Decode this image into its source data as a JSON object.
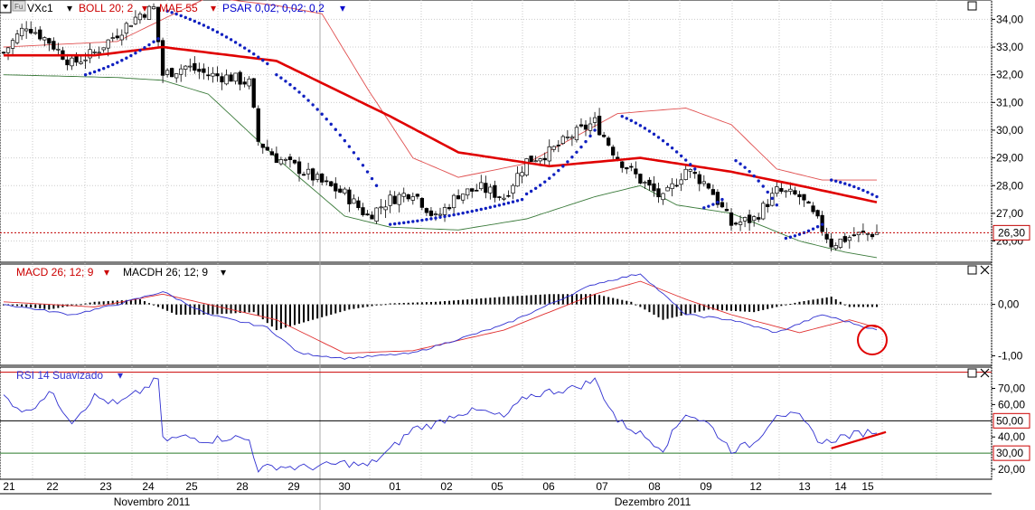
{
  "chart_data": [
    {
      "type": "candlestick",
      "panel": "price",
      "symbol": "VXc1",
      "indicators": [
        {
          "label": "BOLL 20; 2",
          "color": "#cc0000"
        },
        {
          "label": "MAE 55",
          "color": "#cc0000"
        },
        {
          "label": "PSAR 0,02; 0,02; 0,2",
          "color": "#0000cc"
        }
      ],
      "ylim": [
        25.3,
        34.6
      ],
      "yticks": [
        "34,00",
        "33,00",
        "32,00",
        "31,00",
        "30,00",
        "29,00",
        "28,00",
        "27,00",
        "26,00"
      ],
      "last_price_label": "26,30",
      "last_price": 26.3,
      "keypoints": [
        {
          "x": 0,
          "close": 32.8
        },
        {
          "x": 5,
          "close": 33.8
        },
        {
          "x": 10,
          "close": 33.2
        },
        {
          "x": 15,
          "close": 32.4
        },
        {
          "x": 20,
          "close": 32.8
        },
        {
          "x": 25,
          "close": 33.5
        },
        {
          "x": 30,
          "close": 34.2
        },
        {
          "x": 33,
          "close": 34.4
        },
        {
          "x": 35,
          "close": 32.0
        },
        {
          "x": 40,
          "close": 32.3
        },
        {
          "x": 45,
          "close": 32.0
        },
        {
          "x": 50,
          "close": 31.9
        },
        {
          "x": 54,
          "close": 31.7
        },
        {
          "x": 56,
          "close": 29.6
        },
        {
          "x": 60,
          "close": 29.0
        },
        {
          "x": 65,
          "close": 28.6
        },
        {
          "x": 70,
          "close": 28.1
        },
        {
          "x": 75,
          "close": 27.7
        },
        {
          "x": 80,
          "close": 26.9
        },
        {
          "x": 85,
          "close": 27.5
        },
        {
          "x": 90,
          "close": 27.8
        },
        {
          "x": 95,
          "close": 26.8
        },
        {
          "x": 100,
          "close": 27.7
        },
        {
          "x": 105,
          "close": 27.9
        },
        {
          "x": 110,
          "close": 27.6
        },
        {
          "x": 115,
          "close": 28.9
        },
        {
          "x": 120,
          "close": 29.2
        },
        {
          "x": 125,
          "close": 29.8
        },
        {
          "x": 130,
          "close": 30.3
        },
        {
          "x": 135,
          "close": 29.0
        },
        {
          "x": 140,
          "close": 28.2
        },
        {
          "x": 145,
          "close": 27.5
        },
        {
          "x": 150,
          "close": 28.6
        },
        {
          "x": 155,
          "close": 28.0
        },
        {
          "x": 160,
          "close": 26.6
        },
        {
          "x": 165,
          "close": 26.8
        },
        {
          "x": 170,
          "close": 27.8
        },
        {
          "x": 175,
          "close": 27.6
        },
        {
          "x": 179,
          "close": 26.7
        },
        {
          "x": 182,
          "close": 25.9
        },
        {
          "x": 187,
          "close": 26.2
        },
        {
          "x": 192,
          "close": 26.3
        }
      ],
      "mae_55": [
        {
          "x": 0,
          "y": 32.7
        },
        {
          "x": 20,
          "y": 32.7
        },
        {
          "x": 35,
          "y": 33.0
        },
        {
          "x": 60,
          "y": 32.5
        },
        {
          "x": 85,
          "y": 30.5
        },
        {
          "x": 100,
          "y": 29.2
        },
        {
          "x": 120,
          "y": 28.7
        },
        {
          "x": 140,
          "y": 29.0
        },
        {
          "x": 160,
          "y": 28.5
        },
        {
          "x": 175,
          "y": 28.0
        },
        {
          "x": 192,
          "y": 27.4
        }
      ],
      "boll_upper": [
        {
          "x": 0,
          "y": 33.0
        },
        {
          "x": 25,
          "y": 33.2
        },
        {
          "x": 45,
          "y": 34.8
        },
        {
          "x": 60,
          "y": 34.5
        },
        {
          "x": 70,
          "y": 34.2
        },
        {
          "x": 80,
          "y": 31.5
        },
        {
          "x": 90,
          "y": 29.0
        },
        {
          "x": 100,
          "y": 28.3
        },
        {
          "x": 115,
          "y": 28.8
        },
        {
          "x": 135,
          "y": 30.6
        },
        {
          "x": 150,
          "y": 30.8
        },
        {
          "x": 160,
          "y": 30.2
        },
        {
          "x": 170,
          "y": 28.6
        },
        {
          "x": 180,
          "y": 28.2
        },
        {
          "x": 192,
          "y": 28.2
        }
      ],
      "boll_lower": [
        {
          "x": 0,
          "y": 32.0
        },
        {
          "x": 25,
          "y": 31.9
        },
        {
          "x": 35,
          "y": 31.8
        },
        {
          "x": 45,
          "y": 31.3
        },
        {
          "x": 60,
          "y": 29.0
        },
        {
          "x": 75,
          "y": 26.9
        },
        {
          "x": 85,
          "y": 26.5
        },
        {
          "x": 100,
          "y": 26.4
        },
        {
          "x": 115,
          "y": 26.8
        },
        {
          "x": 130,
          "y": 27.6
        },
        {
          "x": 140,
          "y": 28.0
        },
        {
          "x": 148,
          "y": 27.3
        },
        {
          "x": 160,
          "y": 27.0
        },
        {
          "x": 175,
          "y": 26.0
        },
        {
          "x": 185,
          "y": 25.6
        },
        {
          "x": 192,
          "y": 25.4
        }
      ],
      "psar_segments": [
        [
          {
            "x": 18,
            "y": 32.0
          },
          {
            "x": 34,
            "y": 33.3
          }
        ],
        [
          {
            "x": 36,
            "y": 34.3
          },
          {
            "x": 58,
            "y": 32.4
          }
        ],
        [
          {
            "x": 60,
            "y": 32.0
          },
          {
            "x": 82,
            "y": 28.0
          }
        ],
        [
          {
            "x": 85,
            "y": 26.6
          },
          {
            "x": 114,
            "y": 27.5
          }
        ],
        [
          {
            "x": 115,
            "y": 27.7
          },
          {
            "x": 130,
            "y": 30.0
          }
        ],
        [
          {
            "x": 136,
            "y": 30.5
          },
          {
            "x": 152,
            "y": 28.6
          }
        ],
        [
          {
            "x": 154,
            "y": 27.2
          },
          {
            "x": 158,
            "y": 27.5
          }
        ],
        [
          {
            "x": 161,
            "y": 28.9
          },
          {
            "x": 170,
            "y": 27.3
          }
        ],
        [
          {
            "x": 172,
            "y": 26.1
          },
          {
            "x": 180,
            "y": 26.6
          }
        ],
        [
          {
            "x": 182,
            "y": 28.2
          },
          {
            "x": 192,
            "y": 27.6
          }
        ]
      ]
    },
    {
      "type": "line",
      "panel": "macd",
      "labels": [
        "MACD 26; 12; 9",
        "MACDH 26; 12; 9"
      ],
      "ylim": [
        -1.15,
        0.75
      ],
      "yticks": [
        "0,00",
        "-1,00"
      ],
      "macd": [
        {
          "x": 0,
          "y": 0.0
        },
        {
          "x": 15,
          "y": -0.2
        },
        {
          "x": 25,
          "y": 0.0
        },
        {
          "x": 35,
          "y": 0.25
        },
        {
          "x": 45,
          "y": -0.2
        },
        {
          "x": 58,
          "y": -0.45
        },
        {
          "x": 65,
          "y": -0.95
        },
        {
          "x": 75,
          "y": -1.05
        },
        {
          "x": 90,
          "y": -0.95
        },
        {
          "x": 110,
          "y": -0.4
        },
        {
          "x": 130,
          "y": 0.4
        },
        {
          "x": 140,
          "y": 0.6
        },
        {
          "x": 150,
          "y": -0.2
        },
        {
          "x": 160,
          "y": -0.3
        },
        {
          "x": 170,
          "y": -0.55
        },
        {
          "x": 180,
          "y": -0.2
        },
        {
          "x": 186,
          "y": -0.35
        },
        {
          "x": 192,
          "y": -0.5
        }
      ],
      "signal": [
        {
          "x": 0,
          "y": 0.05
        },
        {
          "x": 20,
          "y": -0.05
        },
        {
          "x": 35,
          "y": 0.2
        },
        {
          "x": 45,
          "y": 0.0
        },
        {
          "x": 60,
          "y": -0.3
        },
        {
          "x": 75,
          "y": -0.95
        },
        {
          "x": 90,
          "y": -0.9
        },
        {
          "x": 110,
          "y": -0.5
        },
        {
          "x": 130,
          "y": 0.2
        },
        {
          "x": 140,
          "y": 0.45
        },
        {
          "x": 150,
          "y": 0.1
        },
        {
          "x": 160,
          "y": -0.2
        },
        {
          "x": 175,
          "y": -0.55
        },
        {
          "x": 186,
          "y": -0.3
        },
        {
          "x": 192,
          "y": -0.45
        }
      ],
      "histogram": [
        {
          "x": 0,
          "y": 0.0
        },
        {
          "x": 10,
          "y": -0.1
        },
        {
          "x": 20,
          "y": 0.05
        },
        {
          "x": 30,
          "y": 0.1
        },
        {
          "x": 38,
          "y": -0.2
        },
        {
          "x": 45,
          "y": -0.2
        },
        {
          "x": 55,
          "y": -0.15
        },
        {
          "x": 60,
          "y": -0.5
        },
        {
          "x": 68,
          "y": -0.3
        },
        {
          "x": 76,
          "y": -0.1
        },
        {
          "x": 85,
          "y": 0.02
        },
        {
          "x": 95,
          "y": 0.05
        },
        {
          "x": 110,
          "y": 0.15
        },
        {
          "x": 120,
          "y": 0.2
        },
        {
          "x": 130,
          "y": 0.2
        },
        {
          "x": 138,
          "y": 0.05
        },
        {
          "x": 145,
          "y": -0.3
        },
        {
          "x": 155,
          "y": -0.1
        },
        {
          "x": 165,
          "y": -0.15
        },
        {
          "x": 175,
          "y": 0.05
        },
        {
          "x": 182,
          "y": 0.15
        },
        {
          "x": 186,
          "y": -0.05
        },
        {
          "x": 192,
          "y": -0.05
        }
      ],
      "annotation": "red-circle"
    },
    {
      "type": "line",
      "panel": "rsi",
      "label": "RSI 14 Suavizado",
      "ylim": [
        15,
        82
      ],
      "yticks": [
        "70,00",
        "60,00",
        "40,00",
        "20,00"
      ],
      "level_labels": [
        "50,00",
        "30,00"
      ],
      "levels": [
        80,
        50,
        30
      ],
      "rsi": [
        {
          "x": 0,
          "y": 65
        },
        {
          "x": 5,
          "y": 55
        },
        {
          "x": 10,
          "y": 68
        },
        {
          "x": 15,
          "y": 50
        },
        {
          "x": 20,
          "y": 65
        },
        {
          "x": 25,
          "y": 60
        },
        {
          "x": 30,
          "y": 68
        },
        {
          "x": 34,
          "y": 76
        },
        {
          "x": 35,
          "y": 38
        },
        {
          "x": 40,
          "y": 40
        },
        {
          "x": 45,
          "y": 38
        },
        {
          "x": 50,
          "y": 40
        },
        {
          "x": 54,
          "y": 38
        },
        {
          "x": 56,
          "y": 20
        },
        {
          "x": 60,
          "y": 22
        },
        {
          "x": 65,
          "y": 21
        },
        {
          "x": 70,
          "y": 22
        },
        {
          "x": 75,
          "y": 24
        },
        {
          "x": 80,
          "y": 22
        },
        {
          "x": 85,
          "y": 32
        },
        {
          "x": 90,
          "y": 45
        },
        {
          "x": 95,
          "y": 48
        },
        {
          "x": 100,
          "y": 55
        },
        {
          "x": 105,
          "y": 56
        },
        {
          "x": 110,
          "y": 52
        },
        {
          "x": 115,
          "y": 65
        },
        {
          "x": 120,
          "y": 68
        },
        {
          "x": 125,
          "y": 70
        },
        {
          "x": 130,
          "y": 75
        },
        {
          "x": 135,
          "y": 50
        },
        {
          "x": 140,
          "y": 42
        },
        {
          "x": 145,
          "y": 33
        },
        {
          "x": 150,
          "y": 55
        },
        {
          "x": 155,
          "y": 48
        },
        {
          "x": 160,
          "y": 32
        },
        {
          "x": 165,
          "y": 36
        },
        {
          "x": 170,
          "y": 55
        },
        {
          "x": 175,
          "y": 52
        },
        {
          "x": 180,
          "y": 36
        },
        {
          "x": 184,
          "y": 40
        },
        {
          "x": 188,
          "y": 42
        },
        {
          "x": 192,
          "y": 44
        }
      ],
      "trendline": {
        "from": {
          "x": 182,
          "y": 33
        },
        "to": {
          "x": 194,
          "y": 43
        }
      }
    }
  ],
  "x_axis": {
    "days": [
      "21",
      "22",
      "23",
      "24",
      "25",
      "28",
      "29",
      "30",
      "01",
      "02",
      "05",
      "06",
      "07",
      "08",
      "09",
      "12",
      "13",
      "14",
      "15"
    ],
    "months": [
      "Novembro 2011",
      "Dezembro 2011"
    ]
  },
  "header": {
    "indicator_menu_arrow": "▾",
    "panel_menu_icon": "menu-icon",
    "cursor_badge": "Fu"
  }
}
